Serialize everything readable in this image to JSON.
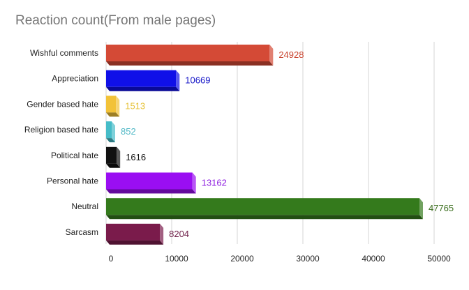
{
  "chart_data": {
    "type": "bar",
    "orientation": "horizontal",
    "style": "3d",
    "title": "Reaction count(From male pages)",
    "xlabel": "",
    "ylabel": "",
    "xlim": [
      0,
      50000
    ],
    "x_ticks": [
      0,
      10000,
      20000,
      30000,
      40000,
      50000
    ],
    "x_tick_labels": [
      "0",
      "10000",
      "20000",
      "30000",
      "40000",
      "50000"
    ],
    "grid": true,
    "legend": "none",
    "categories": [
      "Wishful comments",
      "Appreciation",
      "Gender based hate",
      "Religion based hate",
      "Political hate",
      "Personal hate",
      "Neutral",
      "Sarcasm"
    ],
    "values": [
      24928,
      10669,
      1513,
      852,
      1616,
      13162,
      47765,
      8204
    ],
    "value_labels": [
      "24928",
      "10669",
      "1513",
      "852",
      "1616",
      "13162",
      "47765",
      "8204"
    ],
    "colors": [
      "#d44a36",
      "#1010e8",
      "#f2c238",
      "#46bcc8",
      "#111111",
      "#9a0ef2",
      "#347a1c",
      "#7a1b4b"
    ],
    "label_colors": [
      "#c9442f",
      "#1515c8",
      "#e6c238",
      "#4fb8c6",
      "#111111",
      "#8e1fe0",
      "#3b6e1e",
      "#6e1e48"
    ]
  }
}
